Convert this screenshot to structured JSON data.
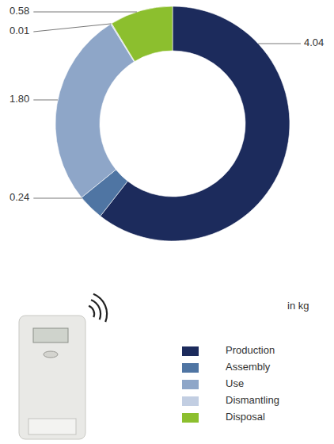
{
  "chart_data": {
    "type": "donut",
    "categories": [
      "Production",
      "Assembly",
      "Use",
      "Dismantling",
      "Disposal"
    ],
    "values": [
      4.04,
      0.24,
      1.8,
      0.01,
      0.58
    ],
    "value_labels": [
      "4.04",
      "0.24",
      "1.80",
      "0.01",
      "0.58"
    ],
    "colors": [
      "#1c2b5c",
      "#4f75a3",
      "#8ea6c8",
      "#c2cee2",
      "#8cbf2e"
    ],
    "data_labels": true,
    "legend": "bottom-right",
    "annotations": [
      "in kg"
    ]
  }
}
